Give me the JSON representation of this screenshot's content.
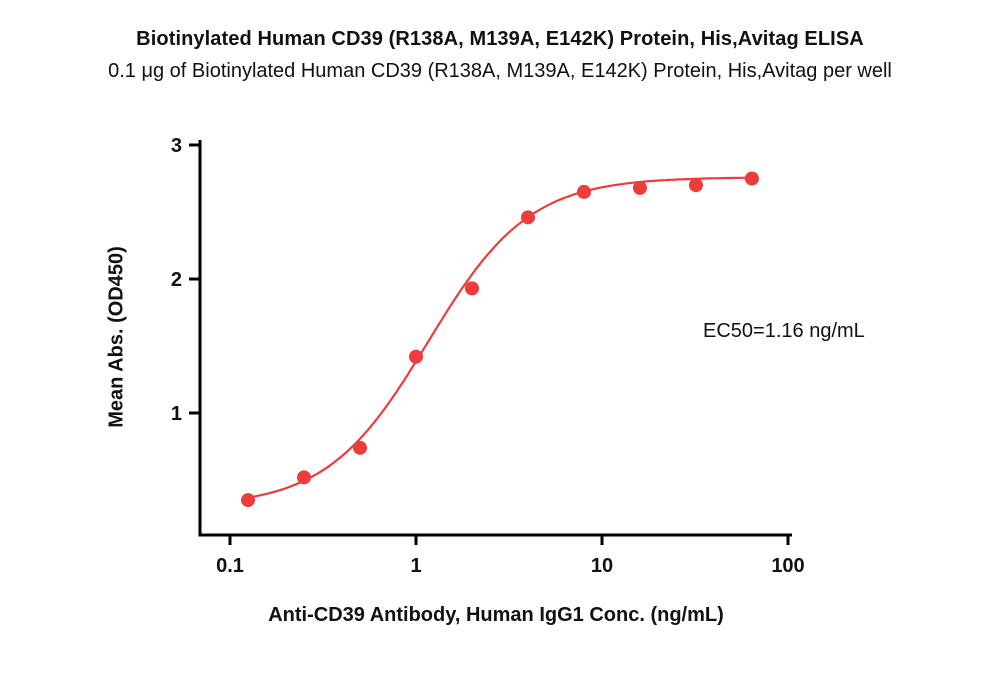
{
  "chart_data": {
    "type": "scatter",
    "title": "Biotinylated Human CD39 (R138A, M139A, E142K) Protein, His,Avitag ELISA",
    "subtitle": "0.1 μg of Biotinylated Human CD39 (R138A, M139A, E142K) Protein, His,Avitag per well",
    "xlabel": "Anti-CD39 Antibody, Human IgG1 Conc. (ng/mL)",
    "ylabel": "Mean Abs. (OD450)",
    "x_scale": "log10",
    "x": [
      0.125,
      0.25,
      0.5,
      1,
      2,
      4,
      8,
      16,
      32,
      64
    ],
    "y": [
      0.35,
      0.52,
      0.74,
      1.42,
      1.93,
      2.46,
      2.65,
      2.68,
      2.7,
      2.75
    ],
    "x_ticks": [
      0.1,
      1,
      10,
      100
    ],
    "y_ticks": [
      1,
      2,
      3
    ],
    "xlim": [
      0.07,
      110
    ],
    "ylim": [
      0.09,
      3.05
    ],
    "fit": {
      "model": "4PL",
      "bottom": 0.3,
      "top": 2.76,
      "ec50": 1.16,
      "hill": 1.6
    },
    "annotation": "EC50=1.16 ng/mL",
    "point_color": "#ee3b3b",
    "line_color": "#ee3b3b",
    "axis_color": "#000000",
    "grid": false,
    "legend": "none"
  }
}
